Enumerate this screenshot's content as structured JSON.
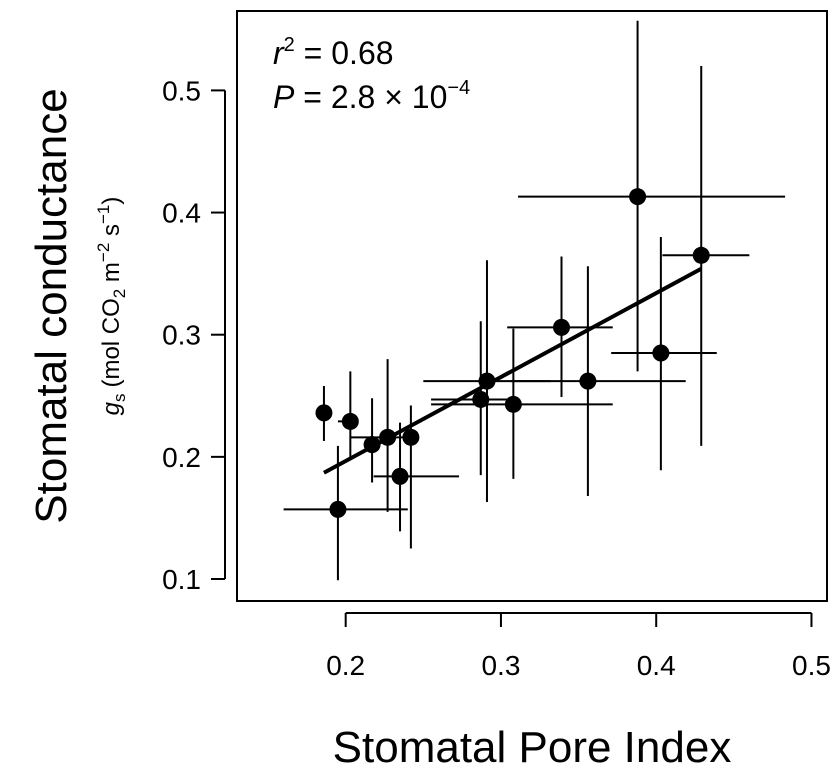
{
  "chart_data": {
    "type": "scatter",
    "xlabel": "Stomatal Pore Index",
    "ylabel_main": "Stomatal conductance",
    "ylabel_sub": {
      "var": "g",
      "var_sub": "s",
      "unit_open": "(mol CO",
      "co2_sub": "2",
      "m": " m",
      "m_exp": "−2",
      "s": " s",
      "s_exp": "−1",
      "close": ")"
    },
    "xlim": [
      0.13,
      0.51
    ],
    "ylim": [
      0.082,
      0.565
    ],
    "x_ticks": [
      0.2,
      0.3,
      0.4,
      0.5
    ],
    "y_ticks": [
      0.1,
      0.2,
      0.3,
      0.4,
      0.5
    ],
    "x_tick_labels": [
      "0.2",
      "0.3",
      "0.4",
      "0.5"
    ],
    "y_tick_labels": [
      "0.1",
      "0.2",
      "0.3",
      "0.4",
      "0.5"
    ],
    "grid": false,
    "points": [
      {
        "x": 0.186,
        "y": 0.236,
        "x_err": [
          0.186,
          0.186
        ],
        "y_err": [
          0.213,
          0.258
        ]
      },
      {
        "x": 0.203,
        "y": 0.229,
        "x_err": [
          0.195,
          0.208
        ],
        "y_err": [
          0.2,
          0.27
        ]
      },
      {
        "x": 0.195,
        "y": 0.157,
        "x_err": [
          0.16,
          0.24
        ],
        "y_err": [
          0.099,
          0.209
        ]
      },
      {
        "x": 0.217,
        "y": 0.21,
        "x_err": [
          0.217,
          0.217
        ],
        "y_err": [
          0.179,
          0.248
        ]
      },
      {
        "x": 0.227,
        "y": 0.216,
        "x_err": [
          0.203,
          0.247
        ],
        "y_err": [
          0.155,
          0.28
        ]
      },
      {
        "x": 0.235,
        "y": 0.184,
        "x_err": [
          0.218,
          0.273
        ],
        "y_err": [
          0.139,
          0.228
        ]
      },
      {
        "x": 0.242,
        "y": 0.216,
        "x_err": [
          0.242,
          0.242
        ],
        "y_err": [
          0.125,
          0.242
        ]
      },
      {
        "x": 0.287,
        "y": 0.247,
        "x_err": [
          0.255,
          0.31
        ],
        "y_err": [
          0.185,
          0.311
        ]
      },
      {
        "x": 0.291,
        "y": 0.262,
        "x_err": [
          0.25,
          0.332
        ],
        "y_err": [
          0.163,
          0.361
        ]
      },
      {
        "x": 0.308,
        "y": 0.243,
        "x_err": [
          0.255,
          0.372
        ],
        "y_err": [
          0.182,
          0.305
        ]
      },
      {
        "x": 0.339,
        "y": 0.306,
        "x_err": [
          0.304,
          0.372
        ],
        "y_err": [
          0.249,
          0.364
        ]
      },
      {
        "x": 0.356,
        "y": 0.262,
        "x_err": [
          0.306,
          0.419
        ],
        "y_err": [
          0.168,
          0.356
        ]
      },
      {
        "x": 0.388,
        "y": 0.413,
        "x_err": [
          0.311,
          0.483
        ],
        "y_err": [
          0.27,
          0.557
        ]
      },
      {
        "x": 0.403,
        "y": 0.285,
        "x_err": [
          0.371,
          0.439
        ],
        "y_err": [
          0.189,
          0.38
        ]
      },
      {
        "x": 0.429,
        "y": 0.365,
        "x_err": [
          0.404,
          0.46
        ],
        "y_err": [
          0.209,
          0.52
        ]
      }
    ],
    "fit_line": {
      "x": [
        0.186,
        0.429
      ],
      "y": [
        0.187,
        0.354
      ]
    },
    "annotations": {
      "r2_var": "r",
      "r2_exp": "2",
      "r2_rest": " = 0.68",
      "p_var": "P",
      "p_rest": " = 2.8 × 10",
      "p_exp": "−4"
    }
  }
}
